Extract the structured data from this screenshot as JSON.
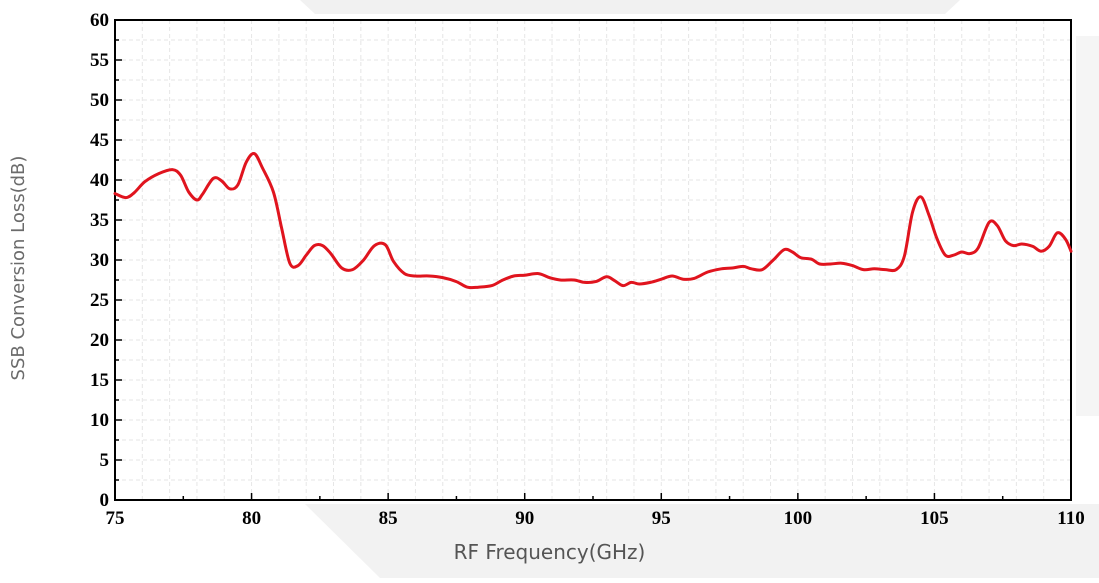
{
  "chart_data": {
    "type": "line",
    "title": "",
    "xlabel": "RF Frequency(GHz)",
    "ylabel": "SSB Conversion Loss(dB)",
    "xlim": [
      75,
      110
    ],
    "ylim": [
      0,
      60
    ],
    "xticks": [
      75,
      80,
      85,
      90,
      95,
      100,
      105,
      110
    ],
    "yticks": [
      0,
      5,
      10,
      15,
      20,
      25,
      30,
      35,
      40,
      45,
      50,
      55,
      60
    ],
    "grid": true,
    "line_color": "#e0141e",
    "series": [
      {
        "x": [
          75.0,
          75.4,
          75.7,
          76.1,
          76.6,
          77.1,
          77.4,
          77.7,
          78.0,
          78.2,
          78.6,
          78.9,
          79.2,
          79.5,
          79.8,
          80.1,
          80.4,
          80.8,
          81.1,
          81.4,
          81.7,
          82.0,
          82.3,
          82.6,
          82.9,
          83.3,
          83.7,
          84.1,
          84.5,
          84.9,
          85.2,
          85.6,
          86.0,
          86.5,
          87.0,
          87.5,
          87.9,
          88.3,
          88.8,
          89.2,
          89.6,
          90.0,
          90.5,
          90.9,
          91.3,
          91.8,
          92.2,
          92.6,
          93.0,
          93.3,
          93.6,
          93.9,
          94.2,
          94.6,
          95.0,
          95.4,
          95.8,
          96.2,
          96.7,
          97.2,
          97.6,
          98.0,
          98.3,
          98.7,
          99.1,
          99.5,
          99.8,
          100.1,
          100.5,
          100.8,
          101.2,
          101.6,
          102.0,
          102.4,
          102.8,
          103.2,
          103.6,
          103.9,
          104.2,
          104.5,
          104.8,
          105.1,
          105.4,
          105.7,
          106.0,
          106.3,
          106.6,
          107.0,
          107.3,
          107.6,
          107.9,
          108.2,
          108.6,
          108.9,
          109.2,
          109.5,
          109.8,
          110.0
        ],
        "y": [
          38.3,
          37.8,
          38.4,
          39.8,
          40.8,
          41.3,
          40.6,
          38.5,
          37.5,
          38.2,
          40.2,
          39.9,
          38.9,
          39.4,
          42.2,
          43.3,
          41.5,
          38.5,
          34.0,
          29.6,
          29.3,
          30.6,
          31.8,
          31.8,
          30.8,
          29.0,
          28.8,
          30.0,
          31.8,
          31.9,
          29.8,
          28.3,
          28.0,
          28.0,
          27.8,
          27.3,
          26.6,
          26.6,
          26.8,
          27.5,
          28.0,
          28.1,
          28.3,
          27.8,
          27.5,
          27.5,
          27.2,
          27.3,
          27.9,
          27.4,
          26.8,
          27.2,
          27.0,
          27.2,
          27.6,
          28.0,
          27.6,
          27.7,
          28.5,
          28.9,
          29.0,
          29.2,
          28.9,
          28.8,
          30.0,
          31.3,
          31.0,
          30.3,
          30.1,
          29.5,
          29.5,
          29.6,
          29.3,
          28.8,
          28.9,
          28.8,
          28.8,
          30.5,
          36.0,
          37.9,
          35.6,
          32.6,
          30.6,
          30.6,
          31.0,
          30.8,
          31.5,
          34.7,
          34.3,
          32.4,
          31.8,
          32.0,
          31.7,
          31.1,
          31.7,
          33.4,
          32.6,
          31.1
        ]
      }
    ]
  }
}
